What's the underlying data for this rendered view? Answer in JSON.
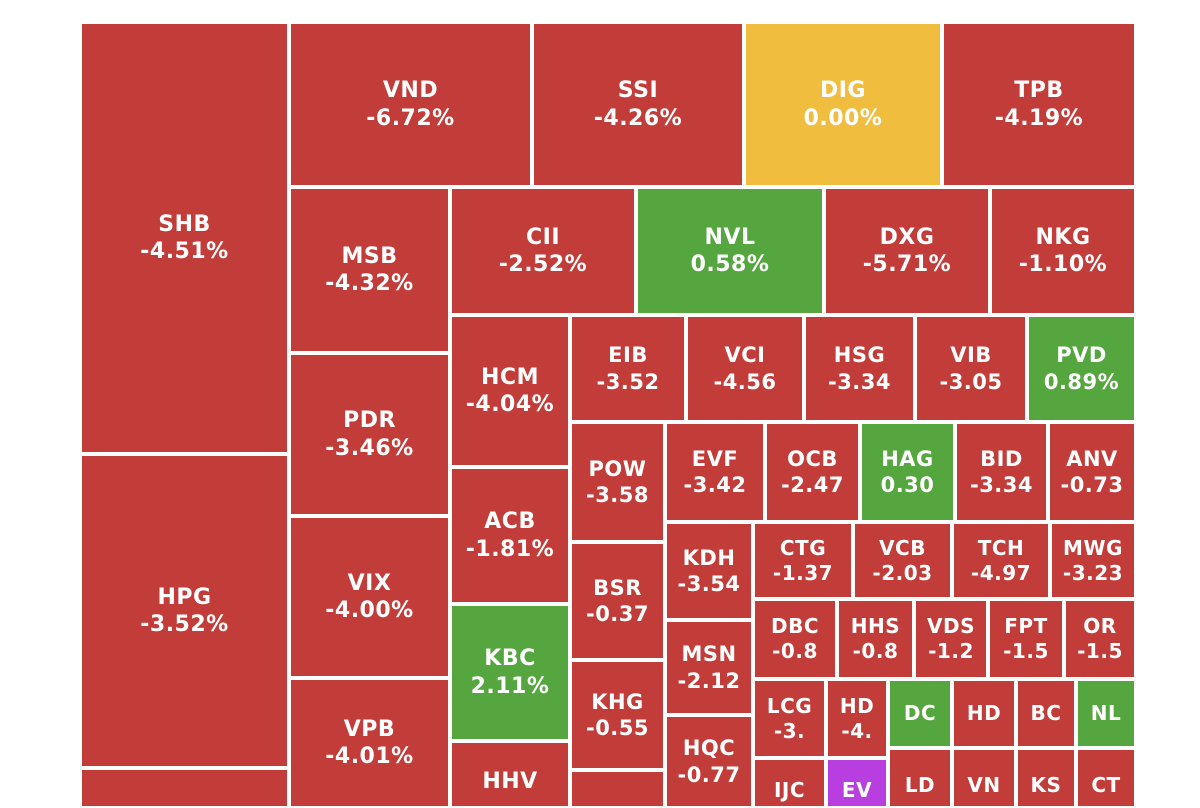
{
  "colors": {
    "down": "#c23c39",
    "up": "#56a640",
    "flat": "#f0bd3e",
    "ceiling": "#b83ee0"
  },
  "chart_data": {
    "type": "treemap",
    "tiles": [
      {
        "symbol": "SHB",
        "change": "-4.51%",
        "status": "down"
      },
      {
        "symbol": "HPG",
        "change": "-3.52%",
        "status": "down"
      },
      {
        "symbol": "",
        "change": "",
        "status": "down"
      },
      {
        "symbol": "VND",
        "change": "-6.72%",
        "status": "down"
      },
      {
        "symbol": "SSI",
        "change": "-4.26%",
        "status": "down"
      },
      {
        "symbol": "DIG",
        "change": "0.00%",
        "status": "flat"
      },
      {
        "symbol": "TPB",
        "change": "-4.19%",
        "status": "down"
      },
      {
        "symbol": "MSB",
        "change": "-4.32%",
        "status": "down"
      },
      {
        "symbol": "PDR",
        "change": "-3.46%",
        "status": "down"
      },
      {
        "symbol": "VIX",
        "change": "-4.00%",
        "status": "down"
      },
      {
        "symbol": "VPB",
        "change": "-4.01%",
        "status": "down"
      },
      {
        "symbol": "CII",
        "change": "-2.52%",
        "status": "down"
      },
      {
        "symbol": "NVL",
        "change": "0.58%",
        "status": "up"
      },
      {
        "symbol": "DXG",
        "change": "-5.71%",
        "status": "down"
      },
      {
        "symbol": "NKG",
        "change": "-1.10%",
        "status": "down"
      },
      {
        "symbol": "HCM",
        "change": "-4.04%",
        "status": "down"
      },
      {
        "symbol": "ACB",
        "change": "-1.81%",
        "status": "down"
      },
      {
        "symbol": "KBC",
        "change": "2.11%",
        "status": "up"
      },
      {
        "symbol": "HHV",
        "change": "",
        "status": "down"
      },
      {
        "symbol": "EIB",
        "change": "-3.52",
        "status": "down"
      },
      {
        "symbol": "VCI",
        "change": "-4.56",
        "status": "down"
      },
      {
        "symbol": "HSG",
        "change": "-3.34",
        "status": "down"
      },
      {
        "symbol": "VIB",
        "change": "-3.05",
        "status": "down"
      },
      {
        "symbol": "PVD",
        "change": "0.89%",
        "status": "up"
      },
      {
        "symbol": "POW",
        "change": "-3.58",
        "status": "down"
      },
      {
        "symbol": "BSR",
        "change": "-0.37",
        "status": "down"
      },
      {
        "symbol": "KHG",
        "change": "-0.55",
        "status": "down"
      },
      {
        "symbol": "",
        "change": "",
        "status": "down"
      },
      {
        "symbol": "EVF",
        "change": "-3.42",
        "status": "down"
      },
      {
        "symbol": "OCB",
        "change": "-2.47",
        "status": "down"
      },
      {
        "symbol": "HAG",
        "change": "0.30",
        "status": "up"
      },
      {
        "symbol": "BID",
        "change": "-3.34",
        "status": "down"
      },
      {
        "symbol": "ANV",
        "change": "-0.73",
        "status": "down"
      },
      {
        "symbol": "KDH",
        "change": "-3.54",
        "status": "down"
      },
      {
        "symbol": "MSN",
        "change": "-2.12",
        "status": "down"
      },
      {
        "symbol": "HQC",
        "change": "-0.77",
        "status": "down"
      },
      {
        "symbol": "CTG",
        "change": "-1.37",
        "status": "down"
      },
      {
        "symbol": "VCB",
        "change": "-2.03",
        "status": "down"
      },
      {
        "symbol": "TCH",
        "change": "-4.97",
        "status": "down"
      },
      {
        "symbol": "MWG",
        "change": "-3.23",
        "status": "down"
      },
      {
        "symbol": "DBC",
        "change": "-0.8",
        "status": "down"
      },
      {
        "symbol": "HHS",
        "change": "-0.8",
        "status": "down"
      },
      {
        "symbol": "VDS",
        "change": "-1.2",
        "status": "down"
      },
      {
        "symbol": "FPT",
        "change": "-1.5",
        "status": "down"
      },
      {
        "symbol": "OR",
        "change": "-1.5",
        "status": "down"
      },
      {
        "symbol": "LCG",
        "change": "-3.",
        "status": "down"
      },
      {
        "symbol": "HD",
        "change": "-4.",
        "status": "down"
      },
      {
        "symbol": "DC",
        "change": "",
        "status": "up"
      },
      {
        "symbol": "HD",
        "change": "",
        "status": "down"
      },
      {
        "symbol": "BC",
        "change": "",
        "status": "down"
      },
      {
        "symbol": "NL",
        "change": "",
        "status": "up"
      },
      {
        "symbol": "IJC",
        "change": "",
        "status": "down"
      },
      {
        "symbol": "EV",
        "change": "",
        "status": "ceiling"
      },
      {
        "symbol": "LD",
        "change": "",
        "status": "down"
      },
      {
        "symbol": "VN",
        "change": "",
        "status": "down"
      },
      {
        "symbol": "KS",
        "change": "",
        "status": "down"
      },
      {
        "symbol": "CT",
        "change": "",
        "status": "down"
      }
    ]
  }
}
